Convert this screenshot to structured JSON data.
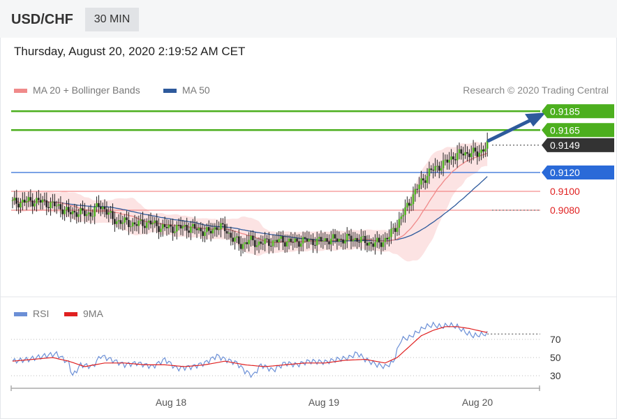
{
  "header": {
    "pair": "USD/CHF",
    "timeframe": "30 MIN"
  },
  "datetime": "Thursday, August 20, 2020 2:19:52 AM CET",
  "legend": {
    "ma20": {
      "label": "MA 20 + Bollinger Bands",
      "color": "#f08a8a"
    },
    "ma50": {
      "label": "MA 50",
      "color": "#2e5a9c"
    },
    "credit": "Research © 2020 Trading Central"
  },
  "rsi_legend": {
    "rsi": {
      "label": "RSI",
      "color": "#6b8fd6"
    },
    "ma9": {
      "label": "9MA",
      "color": "#e02020"
    }
  },
  "chart_data": [
    {
      "type": "candlestick",
      "instrument": "USD/CHF",
      "interval": "30 MIN",
      "price_range": [
        0.9045,
        0.9195
      ],
      "x_ticks": [
        "Aug 18",
        "Aug 19",
        "Aug 20"
      ],
      "levels": [
        {
          "label": "0.9185",
          "value": 0.9185,
          "style": "green"
        },
        {
          "label": "0.9165",
          "value": 0.9165,
          "style": "green"
        },
        {
          "label": "0.9149",
          "value": 0.9149,
          "style": "dark"
        },
        {
          "label": "0.9120",
          "value": 0.912,
          "style": "blue"
        },
        {
          "label": "0.9100",
          "value": 0.91,
          "style": "red"
        },
        {
          "label": "0.9080",
          "value": 0.908,
          "style": "red"
        }
      ],
      "price_path": [
        [
          0,
          0.9088
        ],
        [
          6,
          0.9089
        ],
        [
          12,
          0.909
        ],
        [
          18,
          0.9087
        ],
        [
          24,
          0.9083
        ],
        [
          28,
          0.9077
        ],
        [
          32,
          0.9078
        ],
        [
          36,
          0.9076
        ],
        [
          40,
          0.9077
        ],
        [
          43,
          0.9085
        ],
        [
          46,
          0.9082
        ],
        [
          50,
          0.907
        ],
        [
          56,
          0.9067
        ],
        [
          62,
          0.9065
        ],
        [
          68,
          0.9067
        ],
        [
          74,
          0.9062
        ],
        [
          80,
          0.9061
        ],
        [
          86,
          0.9062
        ],
        [
          92,
          0.906
        ],
        [
          98,
          0.9056
        ],
        [
          102,
          0.9063
        ],
        [
          106,
          0.906
        ],
        [
          110,
          0.905
        ],
        [
          114,
          0.9043
        ],
        [
          118,
          0.9048
        ],
        [
          122,
          0.9045
        ],
        [
          128,
          0.9046
        ],
        [
          134,
          0.9048
        ],
        [
          140,
          0.9046
        ],
        [
          146,
          0.9048
        ],
        [
          152,
          0.9047
        ],
        [
          158,
          0.9049
        ],
        [
          164,
          0.9049
        ],
        [
          170,
          0.905
        ],
        [
          176,
          0.9047
        ],
        [
          180,
          0.9044
        ],
        [
          184,
          0.9046
        ],
        [
          188,
          0.9052
        ],
        [
          192,
          0.9065
        ],
        [
          196,
          0.908
        ],
        [
          200,
          0.9096
        ],
        [
          204,
          0.911
        ],
        [
          208,
          0.912
        ],
        [
          212,
          0.9126
        ],
        [
          216,
          0.913
        ],
        [
          220,
          0.9137
        ],
        [
          224,
          0.914
        ],
        [
          228,
          0.9141
        ],
        [
          232,
          0.914
        ],
        [
          237,
          0.9149
        ]
      ],
      "forecast_target": 0.9185
    },
    {
      "type": "line",
      "title": "RSI",
      "y_ticks": [
        70,
        50,
        30
      ],
      "series": [
        {
          "name": "RSI",
          "points": [
            [
              0,
              46
            ],
            [
              8,
              48
            ],
            [
              16,
              52
            ],
            [
              22,
              54
            ],
            [
              28,
              44
            ],
            [
              30,
              30
            ],
            [
              34,
              42
            ],
            [
              40,
              40
            ],
            [
              44,
              52
            ],
            [
              50,
              47
            ],
            [
              56,
              42
            ],
            [
              62,
              44
            ],
            [
              70,
              40
            ],
            [
              76,
              48
            ],
            [
              82,
              38
            ],
            [
              90,
              40
            ],
            [
              96,
              44
            ],
            [
              102,
              52
            ],
            [
              106,
              48
            ],
            [
              112,
              44
            ],
            [
              116,
              35
            ],
            [
              120,
              30
            ],
            [
              124,
              42
            ],
            [
              130,
              36
            ],
            [
              136,
              44
            ],
            [
              142,
              42
            ],
            [
              148,
              46
            ],
            [
              156,
              45
            ],
            [
              162,
              48
            ],
            [
              168,
              50
            ],
            [
              172,
              55
            ],
            [
              176,
              48
            ],
            [
              182,
              42
            ],
            [
              186,
              40
            ],
            [
              190,
              45
            ],
            [
              194,
              70
            ],
            [
              198,
              72
            ],
            [
              202,
              78
            ],
            [
              206,
              84
            ],
            [
              210,
              86
            ],
            [
              214,
              84
            ],
            [
              218,
              86
            ],
            [
              222,
              84
            ],
            [
              226,
              78
            ],
            [
              230,
              74
            ],
            [
              236,
              76
            ]
          ]
        },
        {
          "name": "9MA",
          "points": [
            [
              0,
              46
            ],
            [
              10,
              48
            ],
            [
              20,
              50
            ],
            [
              28,
              46
            ],
            [
              36,
              40
            ],
            [
              46,
              44
            ],
            [
              56,
              44
            ],
            [
              66,
              42
            ],
            [
              76,
              42
            ],
            [
              86,
              40
            ],
            [
              96,
              42
            ],
            [
              106,
              46
            ],
            [
              116,
              42
            ],
            [
              126,
              40
            ],
            [
              136,
              42
            ],
            [
              146,
              44
            ],
            [
              156,
              44
            ],
            [
              166,
              47
            ],
            [
              176,
              48
            ],
            [
              186,
              44
            ],
            [
              192,
              50
            ],
            [
              198,
              62
            ],
            [
              204,
              74
            ],
            [
              210,
              80
            ],
            [
              216,
              84
            ],
            [
              222,
              84
            ],
            [
              228,
              82
            ],
            [
              236,
              78
            ]
          ]
        }
      ]
    }
  ]
}
